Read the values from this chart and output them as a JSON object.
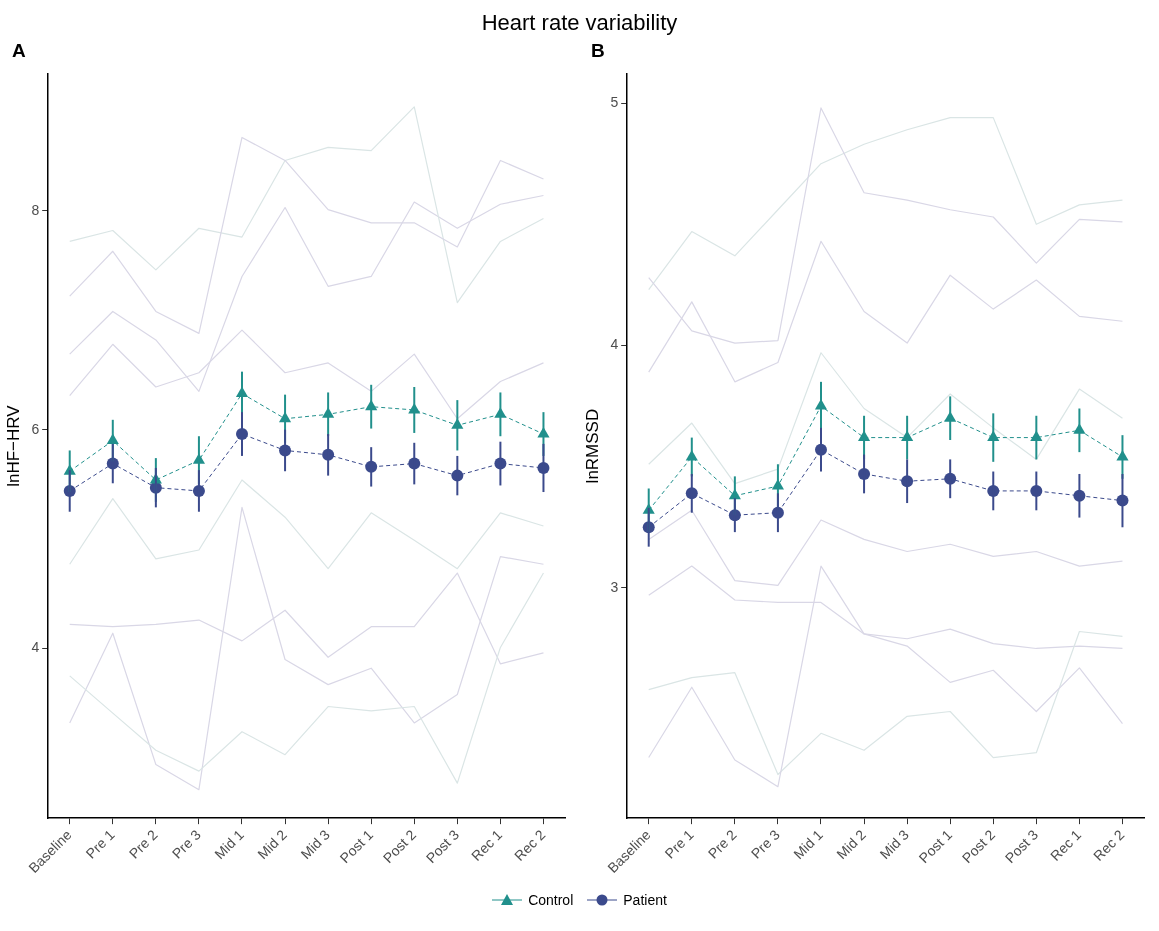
{
  "chart_data": [
    {
      "type": "line",
      "title": "A",
      "ylabel": "lnHF−HRV",
      "annotations": [
        "Heart rate variability"
      ],
      "categories": [
        "Baseline",
        "Pre 1",
        "Pre 2",
        "Pre 3",
        "Mid 1",
        "Mid 2",
        "Mid 3",
        "Post 1",
        "Post 2",
        "Post 3",
        "Rec 1",
        "Rec 2"
      ],
      "ylim": [
        2.45,
        9.25
      ],
      "yticks": [
        4,
        6,
        8
      ],
      "grid": false,
      "legend": "bottom",
      "series": [
        {
          "color": "#d9d7e6",
          "marker": "none",
          "line_style": "solid",
          "values": [
            7.22,
            7.63,
            7.08,
            6.88,
            8.67,
            8.46,
            8.01,
            7.89,
            7.89,
            7.67,
            8.46,
            8.29
          ]
        },
        {
          "color": "#dae5e5",
          "marker": "none",
          "line_style": "solid",
          "values": [
            7.72,
            7.82,
            7.46,
            7.84,
            7.76,
            8.46,
            8.58,
            8.55,
            8.95,
            7.16,
            7.72,
            7.93
          ]
        },
        {
          "color": "#dae5e5",
          "marker": "none",
          "line_style": "solid",
          "values": [
            3.75,
            3.41,
            3.07,
            2.88,
            3.24,
            3.03,
            3.47,
            3.43,
            3.47,
            2.77,
            4.01,
            4.69
          ]
        },
        {
          "color": "#d9d7e6",
          "marker": "none",
          "line_style": "solid",
          "values": [
            3.32,
            4.14,
            2.94,
            2.71,
            5.29,
            3.9,
            3.67,
            3.82,
            3.32,
            3.58,
            4.84,
            4.77
          ]
        },
        {
          "color": "#d9d7e6",
          "marker": "none",
          "line_style": "solid",
          "values": [
            4.22,
            4.2,
            4.22,
            4.26,
            4.07,
            4.35,
            3.92,
            4.2,
            4.2,
            4.69,
            3.86,
            3.96
          ]
        },
        {
          "color": "#d9d7e6",
          "marker": "none",
          "line_style": "solid",
          "values": [
            6.69,
            7.08,
            6.82,
            6.35,
            7.4,
            8.03,
            7.31,
            7.4,
            8.08,
            7.84,
            8.06,
            8.14
          ]
        },
        {
          "color": "#d9d7e6",
          "marker": "none",
          "line_style": "solid",
          "values": [
            6.31,
            6.78,
            6.39,
            6.52,
            6.91,
            6.52,
            6.61,
            6.35,
            6.69,
            6.1,
            6.44,
            6.61
          ]
        },
        {
          "color": "#dae5e5",
          "marker": "none",
          "line_style": "solid",
          "values": [
            4.77,
            5.37,
            4.82,
            4.9,
            5.54,
            5.2,
            4.73,
            5.24,
            4.99,
            4.73,
            5.24,
            5.12
          ]
        },
        {
          "name": "Control",
          "color": "#21908c",
          "marker": "triangle",
          "line_style": "dashed",
          "values": [
            5.62,
            5.9,
            5.54,
            5.72,
            6.33,
            6.1,
            6.14,
            6.21,
            6.18,
            6.04,
            6.14,
            5.96
          ],
          "errors": [
            0.19,
            0.19,
            0.2,
            0.22,
            0.2,
            0.22,
            0.2,
            0.2,
            0.21,
            0.23,
            0.2,
            0.2
          ]
        },
        {
          "name": "Patient",
          "color": "#3b4a8c",
          "marker": "circle",
          "line_style": "dashed",
          "values": [
            5.44,
            5.69,
            5.47,
            5.44,
            5.96,
            5.81,
            5.77,
            5.66,
            5.69,
            5.58,
            5.69,
            5.65
          ],
          "errors": [
            0.19,
            0.18,
            0.18,
            0.19,
            0.2,
            0.19,
            0.19,
            0.18,
            0.19,
            0.18,
            0.2,
            0.22
          ]
        }
      ]
    },
    {
      "type": "line",
      "title": "B",
      "ylabel": "lnRMSSD",
      "categories": [
        "Baseline",
        "Pre 1",
        "Pre 2",
        "Pre 3",
        "Mid 1",
        "Mid 2",
        "Mid 3",
        "Post 1",
        "Post 2",
        "Post 3",
        "Rec 1",
        "Rec 2"
      ],
      "ylim": [
        2.05,
        5.12
      ],
      "yticks": [
        3,
        4,
        5
      ],
      "grid": false,
      "legend": "bottom",
      "series": [
        {
          "color": "#d9d7e6",
          "marker": "none",
          "line_style": "solid",
          "values": [
            4.28,
            4.06,
            4.01,
            4.02,
            4.98,
            4.63,
            4.6,
            4.56,
            4.53,
            4.34,
            4.52,
            4.51
          ]
        },
        {
          "color": "#dae5e5",
          "marker": "none",
          "line_style": "solid",
          "values": [
            4.23,
            4.47,
            4.37,
            4.56,
            4.75,
            4.83,
            4.89,
            4.94,
            4.94,
            4.5,
            4.58,
            4.6
          ]
        },
        {
          "color": "#d9d7e6",
          "marker": "none",
          "line_style": "solid",
          "values": [
            2.3,
            2.59,
            2.29,
            2.18,
            3.09,
            2.81,
            2.76,
            2.61,
            2.66,
            2.49,
            2.67,
            2.44
          ]
        },
        {
          "color": "#dae5e5",
          "marker": "none",
          "line_style": "solid",
          "values": [
            2.58,
            2.63,
            2.65,
            2.23,
            2.4,
            2.33,
            2.47,
            2.49,
            2.3,
            2.32,
            2.82,
            2.8
          ]
        },
        {
          "color": "#d9d7e6",
          "marker": "none",
          "line_style": "solid",
          "values": [
            2.97,
            3.09,
            2.95,
            2.94,
            2.94,
            2.81,
            2.79,
            2.83,
            2.77,
            2.75,
            2.76,
            2.75
          ]
        },
        {
          "color": "#d9d7e6",
          "marker": "none",
          "line_style": "solid",
          "values": [
            3.89,
            4.18,
            3.85,
            3.93,
            4.43,
            4.14,
            4.01,
            4.29,
            4.15,
            4.27,
            4.12,
            4.1
          ]
        },
        {
          "color": "#dae5e5",
          "marker": "none",
          "line_style": "solid",
          "values": [
            3.51,
            3.68,
            3.43,
            3.49,
            3.97,
            3.74,
            3.62,
            3.8,
            3.66,
            3.53,
            3.82,
            3.7
          ]
        },
        {
          "color": "#d9d7e6",
          "marker": "none",
          "line_style": "solid",
          "values": [
            3.2,
            3.32,
            3.03,
            3.01,
            3.28,
            3.2,
            3.15,
            3.18,
            3.13,
            3.15,
            3.09,
            3.11
          ]
        },
        {
          "name": "Control",
          "color": "#21908c",
          "marker": "triangle",
          "line_style": "dashed",
          "values": [
            3.32,
            3.54,
            3.38,
            3.42,
            3.75,
            3.62,
            3.62,
            3.7,
            3.62,
            3.62,
            3.65,
            3.54
          ],
          "errors": [
            0.09,
            0.08,
            0.08,
            0.09,
            0.1,
            0.09,
            0.09,
            0.09,
            0.1,
            0.09,
            0.09,
            0.09
          ]
        },
        {
          "name": "Patient",
          "color": "#3b4a8c",
          "marker": "circle",
          "line_style": "dashed",
          "values": [
            3.25,
            3.39,
            3.3,
            3.31,
            3.57,
            3.47,
            3.44,
            3.45,
            3.4,
            3.4,
            3.38,
            3.36
          ],
          "errors": [
            0.08,
            0.08,
            0.07,
            0.08,
            0.09,
            0.08,
            0.09,
            0.08,
            0.08,
            0.08,
            0.09,
            0.11
          ]
        }
      ]
    }
  ]
}
